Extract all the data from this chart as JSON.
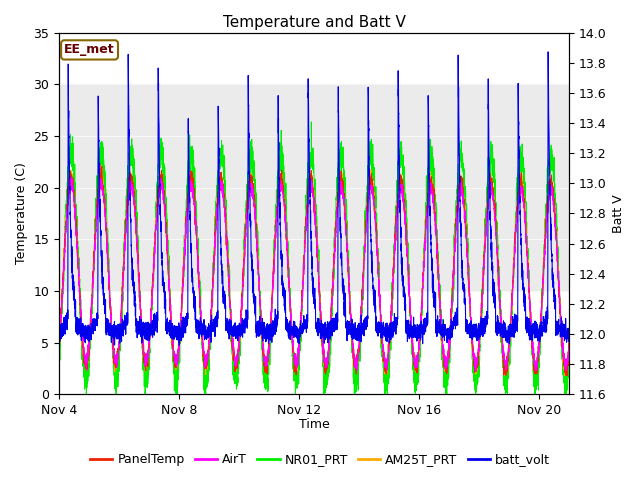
{
  "title": "Temperature and Batt V",
  "xlabel": "Time",
  "ylabel_left": "Temperature (C)",
  "ylabel_right": "Batt V",
  "annotation": "EE_met",
  "ylim_left": [
    0,
    35
  ],
  "ylim_right": [
    11.6,
    14.0
  ],
  "yticks_left": [
    0,
    5,
    10,
    15,
    20,
    25,
    30,
    35
  ],
  "yticks_right": [
    11.6,
    11.8,
    12.0,
    12.2,
    12.4,
    12.6,
    12.8,
    13.0,
    13.2,
    13.4,
    13.6,
    13.8,
    14.0
  ],
  "xtick_days": [
    4,
    8,
    12,
    16,
    20
  ],
  "xtick_labels": [
    "Nov 4",
    "Nov 8",
    "Nov 12",
    "Nov 16",
    "Nov 20"
  ],
  "legend_entries": [
    "PanelTemp",
    "AirT",
    "NR01_PRT",
    "AM25T_PRT",
    "batt_volt"
  ],
  "legend_colors": [
    "#ee2200",
    "#ff00ff",
    "#00ee00",
    "#ffaa00",
    "#0000ee"
  ],
  "background_color": "#ffffff",
  "grid_band_color": "#d8d8d8",
  "title_fontsize": 11,
  "axis_fontsize": 9,
  "tick_fontsize": 9,
  "legend_fontsize": 9
}
